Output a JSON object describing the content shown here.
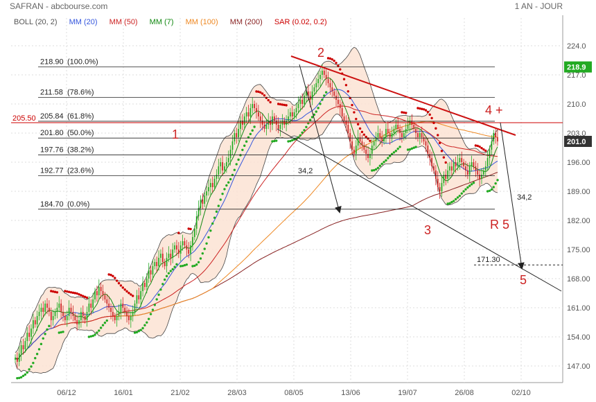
{
  "header": {
    "title": "SAFRAN - abcbourse.com",
    "period": "1 AN - JOUR"
  },
  "legend": [
    {
      "label": "BOLL (20, 2)",
      "color": "#555555"
    },
    {
      "label": "MM (20)",
      "color": "#3355dd"
    },
    {
      "label": "MM (50)",
      "color": "#cc2222"
    },
    {
      "label": "MM (7)",
      "color": "#118811"
    },
    {
      "label": "MM (100)",
      "color": "#ee8822"
    },
    {
      "label": "MM (200)",
      "color": "#882222"
    },
    {
      "label": "SAR (0.02, 0.2)",
      "color": "#cc0000"
    }
  ],
  "chart_data": {
    "type": "candlestick",
    "ylim": [
      143,
      228
    ],
    "yticks": [
      "224.0",
      "217.0",
      "210.0",
      "203.0",
      "196.00",
      "189.00",
      "182.00",
      "175.00",
      "168.00",
      "161.00",
      "154.00",
      "147.00"
    ],
    "ytick_values": [
      224,
      217,
      210,
      203,
      196,
      189,
      182,
      175,
      168,
      161,
      154,
      147
    ],
    "x_dates": [
      "06/12",
      "16/01",
      "21/02",
      "28/03",
      "08/05",
      "13/06",
      "19/07",
      "26/08",
      "02/10"
    ],
    "last_price": "201.0",
    "high_marker": "218.9",
    "resistance_label": "205.50",
    "resistance_value": 205.5,
    "fibonacci": [
      {
        "value": 218.9,
        "label": "218.90",
        "pct": "(100.0%)"
      },
      {
        "value": 211.58,
        "label": "211.58",
        "pct": "(78.6%)"
      },
      {
        "value": 205.84,
        "label": "205.84",
        "pct": "(61.8%)"
      },
      {
        "value": 201.8,
        "label": "201.80",
        "pct": "(50.0%)"
      },
      {
        "value": 197.76,
        "label": "197.76",
        "pct": "(38.2%)"
      },
      {
        "value": 192.77,
        "label": "192.77",
        "pct": "(23.6%)"
      },
      {
        "value": 184.7,
        "label": "184.70",
        "pct": "(0.0%)"
      }
    ],
    "target": {
      "value": 171.3,
      "label": "171.30"
    },
    "annotations": {
      "wave1": "1",
      "wave2": "2",
      "wave3": "3",
      "wave4": "4 +",
      "wave5": "5",
      "r5": "R 5",
      "move_a": "34,2",
      "move_b": "34,2"
    },
    "series_close": [
      149,
      148,
      150,
      152,
      151,
      153,
      155,
      154,
      156,
      158,
      157,
      159,
      160,
      161,
      160,
      162,
      161,
      160,
      158,
      159,
      160,
      161,
      162,
      160,
      159,
      158,
      159,
      161,
      160,
      159,
      158,
      157,
      158,
      160,
      159,
      158,
      160,
      162,
      161,
      163,
      165,
      164,
      166,
      165,
      164,
      163,
      162,
      161,
      160,
      159,
      158,
      159,
      160,
      162,
      161,
      160,
      159,
      158,
      159,
      160,
      162,
      164,
      163,
      165,
      167,
      166,
      168,
      170,
      169,
      171,
      172,
      171,
      173,
      174,
      172,
      171,
      173,
      174,
      173,
      175,
      176,
      175,
      174,
      176,
      177,
      176,
      175,
      174,
      176,
      178,
      180,
      183,
      185,
      187,
      186,
      188,
      189,
      190,
      191,
      190,
      192,
      193,
      195,
      196,
      194,
      195,
      196,
      197,
      199,
      201,
      203,
      202,
      204,
      206,
      205,
      207,
      208,
      207,
      209,
      210,
      209,
      208,
      207,
      206,
      205,
      204,
      205,
      206,
      205,
      207,
      206,
      205,
      204,
      205,
      206,
      205,
      206,
      207,
      208,
      207,
      208,
      209,
      210,
      211,
      210,
      212,
      213,
      212,
      211,
      213,
      214,
      215,
      216,
      217,
      218,
      217,
      216,
      215,
      214,
      213,
      212,
      211,
      210,
      209,
      207,
      206,
      205,
      203,
      201,
      199,
      198,
      200,
      202,
      201,
      200,
      199,
      198,
      197,
      198,
      200,
      201,
      202,
      203,
      202,
      201,
      202,
      204,
      203,
      202,
      203,
      204,
      205,
      204,
      203,
      202,
      203,
      204,
      205,
      206,
      205,
      204,
      203,
      202,
      203,
      202,
      201,
      200,
      198,
      197,
      195,
      194,
      192,
      190,
      189,
      191,
      193,
      192,
      194,
      195,
      194,
      196,
      195,
      196,
      197,
      196,
      195,
      194,
      193,
      195,
      196,
      195,
      194,
      193,
      192,
      193,
      194,
      195,
      197,
      199,
      201,
      203,
      202,
      201
    ]
  }
}
